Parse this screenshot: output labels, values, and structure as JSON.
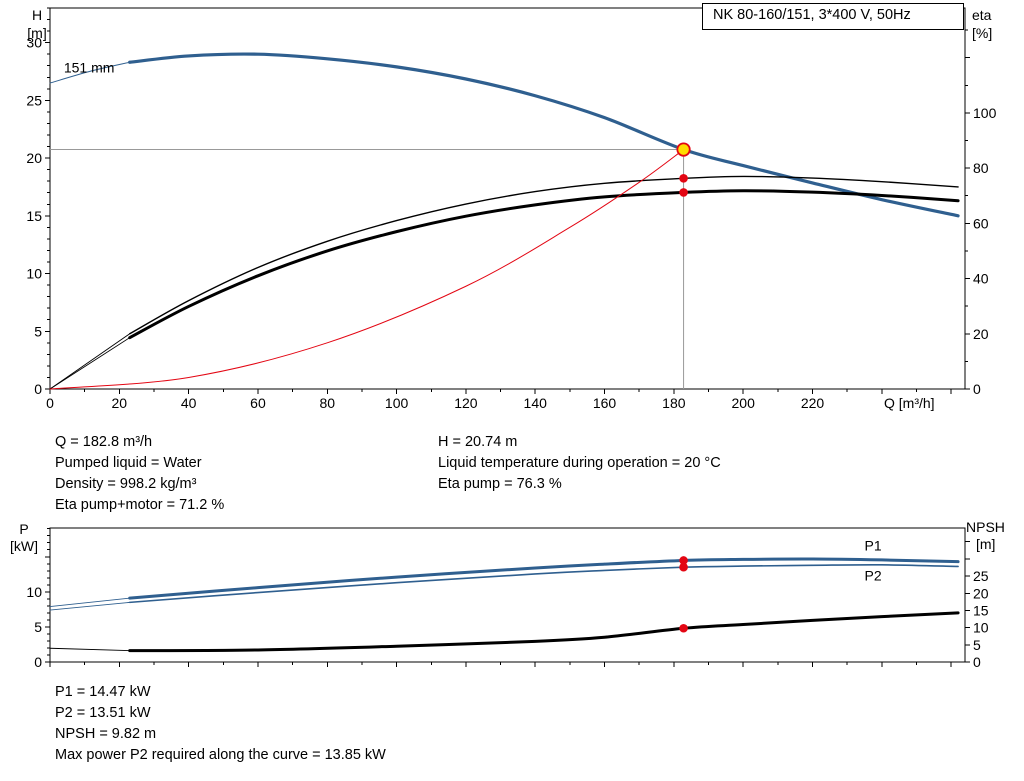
{
  "title_box": {
    "label": "NK 80-160/151, 3*400 V, 50Hz"
  },
  "colors": {
    "curve_blue": "#2f5f8f",
    "curve_black": "#000000",
    "curve_red": "#e30613",
    "marker_yellow": "#ffdd00",
    "marker_red": "#e30613",
    "crosshair_gray": "#999999",
    "label_navy": "#17365d"
  },
  "info_top": {
    "left": [
      "Q = 182.8 m³/h",
      "Pumped liquid = Water",
      "Density = 998.2 kg/m³",
      "Eta pump+motor = 71.2 %"
    ],
    "right": [
      "H = 20.74 m",
      "Liquid temperature during operation = 20 °C",
      "Eta pump = 76.3 %"
    ]
  },
  "info_bottom": [
    "P1 = 14.47 kW",
    "P2 = 13.51 kW",
    "NPSH = 9.82 m",
    "Max power P2 required along the curve = 13.85 kW"
  ],
  "chart_data": [
    {
      "type": "line",
      "title": "NK 80-160/151, 3*400 V, 50Hz",
      "axis_titles": {
        "left": [
          "H",
          "[m]"
        ],
        "right": [
          "eta",
          "[%]"
        ],
        "x": "Q [m³/h]"
      },
      "x_axis": {
        "label": "Q [m³/h]",
        "min": 0,
        "max": 264,
        "tick_step": 20,
        "minor_step": 10,
        "labels_until": 220
      },
      "y_left": {
        "label": "H [m]",
        "min": 0,
        "max": 33,
        "tick_step": 5,
        "minor_step": 1,
        "labels_until": 30
      },
      "y_right": {
        "label": "eta [%]",
        "min": 0,
        "max": 138,
        "tick_step": 20,
        "minor_step": 10,
        "labels_until": 100
      },
      "series": [
        {
          "name": "head-curve-extension",
          "axis": "left",
          "color": "#2f5f8f",
          "width": 1,
          "x": [
            0,
            12,
            23
          ],
          "y": [
            26.5,
            27.55,
            28.3
          ]
        },
        {
          "name": "head-curve-151mm",
          "axis": "left",
          "color": "#2f5f8f",
          "width": 3.2,
          "x": [
            23,
            40,
            60,
            80,
            100,
            120,
            140,
            160,
            182.8,
            200,
            220,
            240,
            262
          ],
          "y": [
            28.3,
            28.85,
            29.0,
            28.6,
            27.9,
            26.85,
            25.4,
            23.5,
            20.74,
            19.35,
            17.85,
            16.4,
            15.0
          ]
        },
        {
          "name": "eta-pump-extension",
          "axis": "right",
          "color": "#000000",
          "width": 0.9,
          "x": [
            0,
            23
          ],
          "y": [
            0,
            20
          ]
        },
        {
          "name": "eta-pump-curve",
          "axis": "right",
          "color": "#000000",
          "width": 1.4,
          "x": [
            23,
            40,
            60,
            80,
            100,
            120,
            140,
            160,
            182.8,
            200,
            220,
            240,
            262
          ],
          "y": [
            20,
            32,
            44,
            53.5,
            61,
            67,
            71.5,
            74.5,
            76.3,
            77,
            76.4,
            75.1,
            73.2
          ]
        },
        {
          "name": "eta-pump-motor-extension",
          "axis": "right",
          "color": "#000000",
          "width": 0.9,
          "x": [
            0,
            23
          ],
          "y": [
            0,
            18.6
          ]
        },
        {
          "name": "eta-pump-motor-curve",
          "axis": "right",
          "color": "#000000",
          "width": 3,
          "x": [
            23,
            40,
            60,
            80,
            100,
            120,
            140,
            160,
            182.8,
            200,
            220,
            240,
            262
          ],
          "y": [
            18.6,
            29.9,
            41,
            50,
            57,
            62.6,
            66.7,
            69.6,
            71.2,
            71.8,
            71.3,
            70.1,
            68.2
          ]
        },
        {
          "name": "system-curve",
          "axis": "left",
          "color": "#e30613",
          "width": 1,
          "x": [
            0,
            40,
            80,
            120,
            150,
            170,
            182.8
          ],
          "y": [
            0,
            1.0,
            4.0,
            8.9,
            14.0,
            17.9,
            20.74
          ]
        }
      ],
      "crosshair": {
        "q": 182.8,
        "v": 20.74,
        "axis": "left",
        "color": "#999999"
      },
      "markers": [
        {
          "type": "duty",
          "name": "duty-point-marker",
          "axis": "left",
          "q": 182.8,
          "v": 20.74,
          "fill": "#ffdd00",
          "stroke": "#e30613"
        },
        {
          "type": "dot",
          "name": "eta-pump-duty-dot",
          "axis": "right",
          "q": 182.8,
          "v": 76.3,
          "fill": "#e30613"
        },
        {
          "type": "dot",
          "name": "eta-pump-motor-duty-dot",
          "axis": "right",
          "q": 182.8,
          "v": 71.2,
          "fill": "#e30613"
        }
      ],
      "labels": [
        {
          "name": "impeller-diameter-label",
          "text": "151 mm",
          "q": 4,
          "v": 27.4,
          "axis": "left",
          "color": "#17365d"
        }
      ],
      "duty_point": {
        "Q_m3h": 182.8,
        "H_m": 20.74,
        "eta_pump_pct": 76.3,
        "eta_pump_motor_pct": 71.2
      }
    },
    {
      "type": "line",
      "title": "",
      "axis_titles": {
        "left": [
          "P",
          "[kW]"
        ],
        "right": [
          "NPSH",
          "[m]"
        ],
        "x": ""
      },
      "x_axis": {
        "label": "",
        "min": 0,
        "max": 264,
        "tick_step": 20,
        "minor_step": 10,
        "labels_until": -1
      },
      "y_left": {
        "label": "P [kW]",
        "min": 0,
        "max": 19.1,
        "tick_step": 5,
        "minor_step": 1,
        "labels_until": 10
      },
      "y_right": {
        "label": "NPSH [m]",
        "min": 0,
        "max": 39,
        "tick_step": 5,
        "minor_step": 5,
        "labels_until": 25
      },
      "series": [
        {
          "name": "p1-extension",
          "axis": "left",
          "color": "#2f5f8f",
          "width": 0.9,
          "x": [
            0,
            23
          ],
          "y": [
            7.9,
            9.1
          ]
        },
        {
          "name": "p1-curve",
          "axis": "left",
          "color": "#2f5f8f",
          "width": 3,
          "x": [
            23,
            60,
            100,
            140,
            160,
            182.8,
            200,
            220,
            240,
            262
          ],
          "y": [
            9.1,
            10.6,
            12.1,
            13.4,
            13.95,
            14.47,
            14.62,
            14.68,
            14.55,
            14.3
          ]
        },
        {
          "name": "p2-extension",
          "axis": "left",
          "color": "#2f5f8f",
          "width": 0.9,
          "x": [
            0,
            23
          ],
          "y": [
            7.4,
            8.5
          ]
        },
        {
          "name": "p2-curve",
          "axis": "left",
          "color": "#2f5f8f",
          "width": 1.6,
          "x": [
            23,
            60,
            100,
            140,
            160,
            182.8,
            200,
            220,
            240,
            262
          ],
          "y": [
            8.5,
            9.9,
            11.3,
            12.55,
            13.05,
            13.51,
            13.67,
            13.78,
            13.85,
            13.62
          ]
        },
        {
          "name": "npsh-extension",
          "axis": "right",
          "color": "#000000",
          "width": 0.9,
          "x": [
            0,
            23
          ],
          "y": [
            4.0,
            3.3
          ]
        },
        {
          "name": "npsh-curve",
          "axis": "right",
          "color": "#000000",
          "width": 3,
          "x": [
            23,
            60,
            100,
            140,
            160,
            182.8,
            200,
            220,
            240,
            262
          ],
          "y": [
            3.3,
            3.5,
            4.6,
            6.0,
            7.2,
            9.82,
            10.9,
            12.1,
            13.2,
            14.3
          ]
        }
      ],
      "markers": [
        {
          "type": "dot",
          "name": "p1-duty-dot",
          "axis": "left",
          "q": 182.8,
          "v": 14.47,
          "fill": "#e30613"
        },
        {
          "type": "dot",
          "name": "p2-duty-dot",
          "axis": "left",
          "q": 182.8,
          "v": 13.51,
          "fill": "#e30613"
        },
        {
          "type": "dot",
          "name": "npsh-duty-dot",
          "axis": "right",
          "q": 182.8,
          "v": 9.82,
          "fill": "#e30613"
        }
      ],
      "labels": [
        {
          "name": "p1-curve-label",
          "text": "P1",
          "q": 235,
          "v": 15.9,
          "axis": "left",
          "color": "#2f5f8f"
        },
        {
          "name": "p2-curve-label",
          "text": "P2",
          "q": 235,
          "v": 11.6,
          "axis": "left",
          "color": "#2f5f8f"
        }
      ],
      "duty_point": {
        "Q_m3h": 182.8,
        "P1_kW": 14.47,
        "P2_kW": 13.51,
        "NPSH_m": 9.82,
        "max_P2_kW": 13.85
      }
    }
  ]
}
